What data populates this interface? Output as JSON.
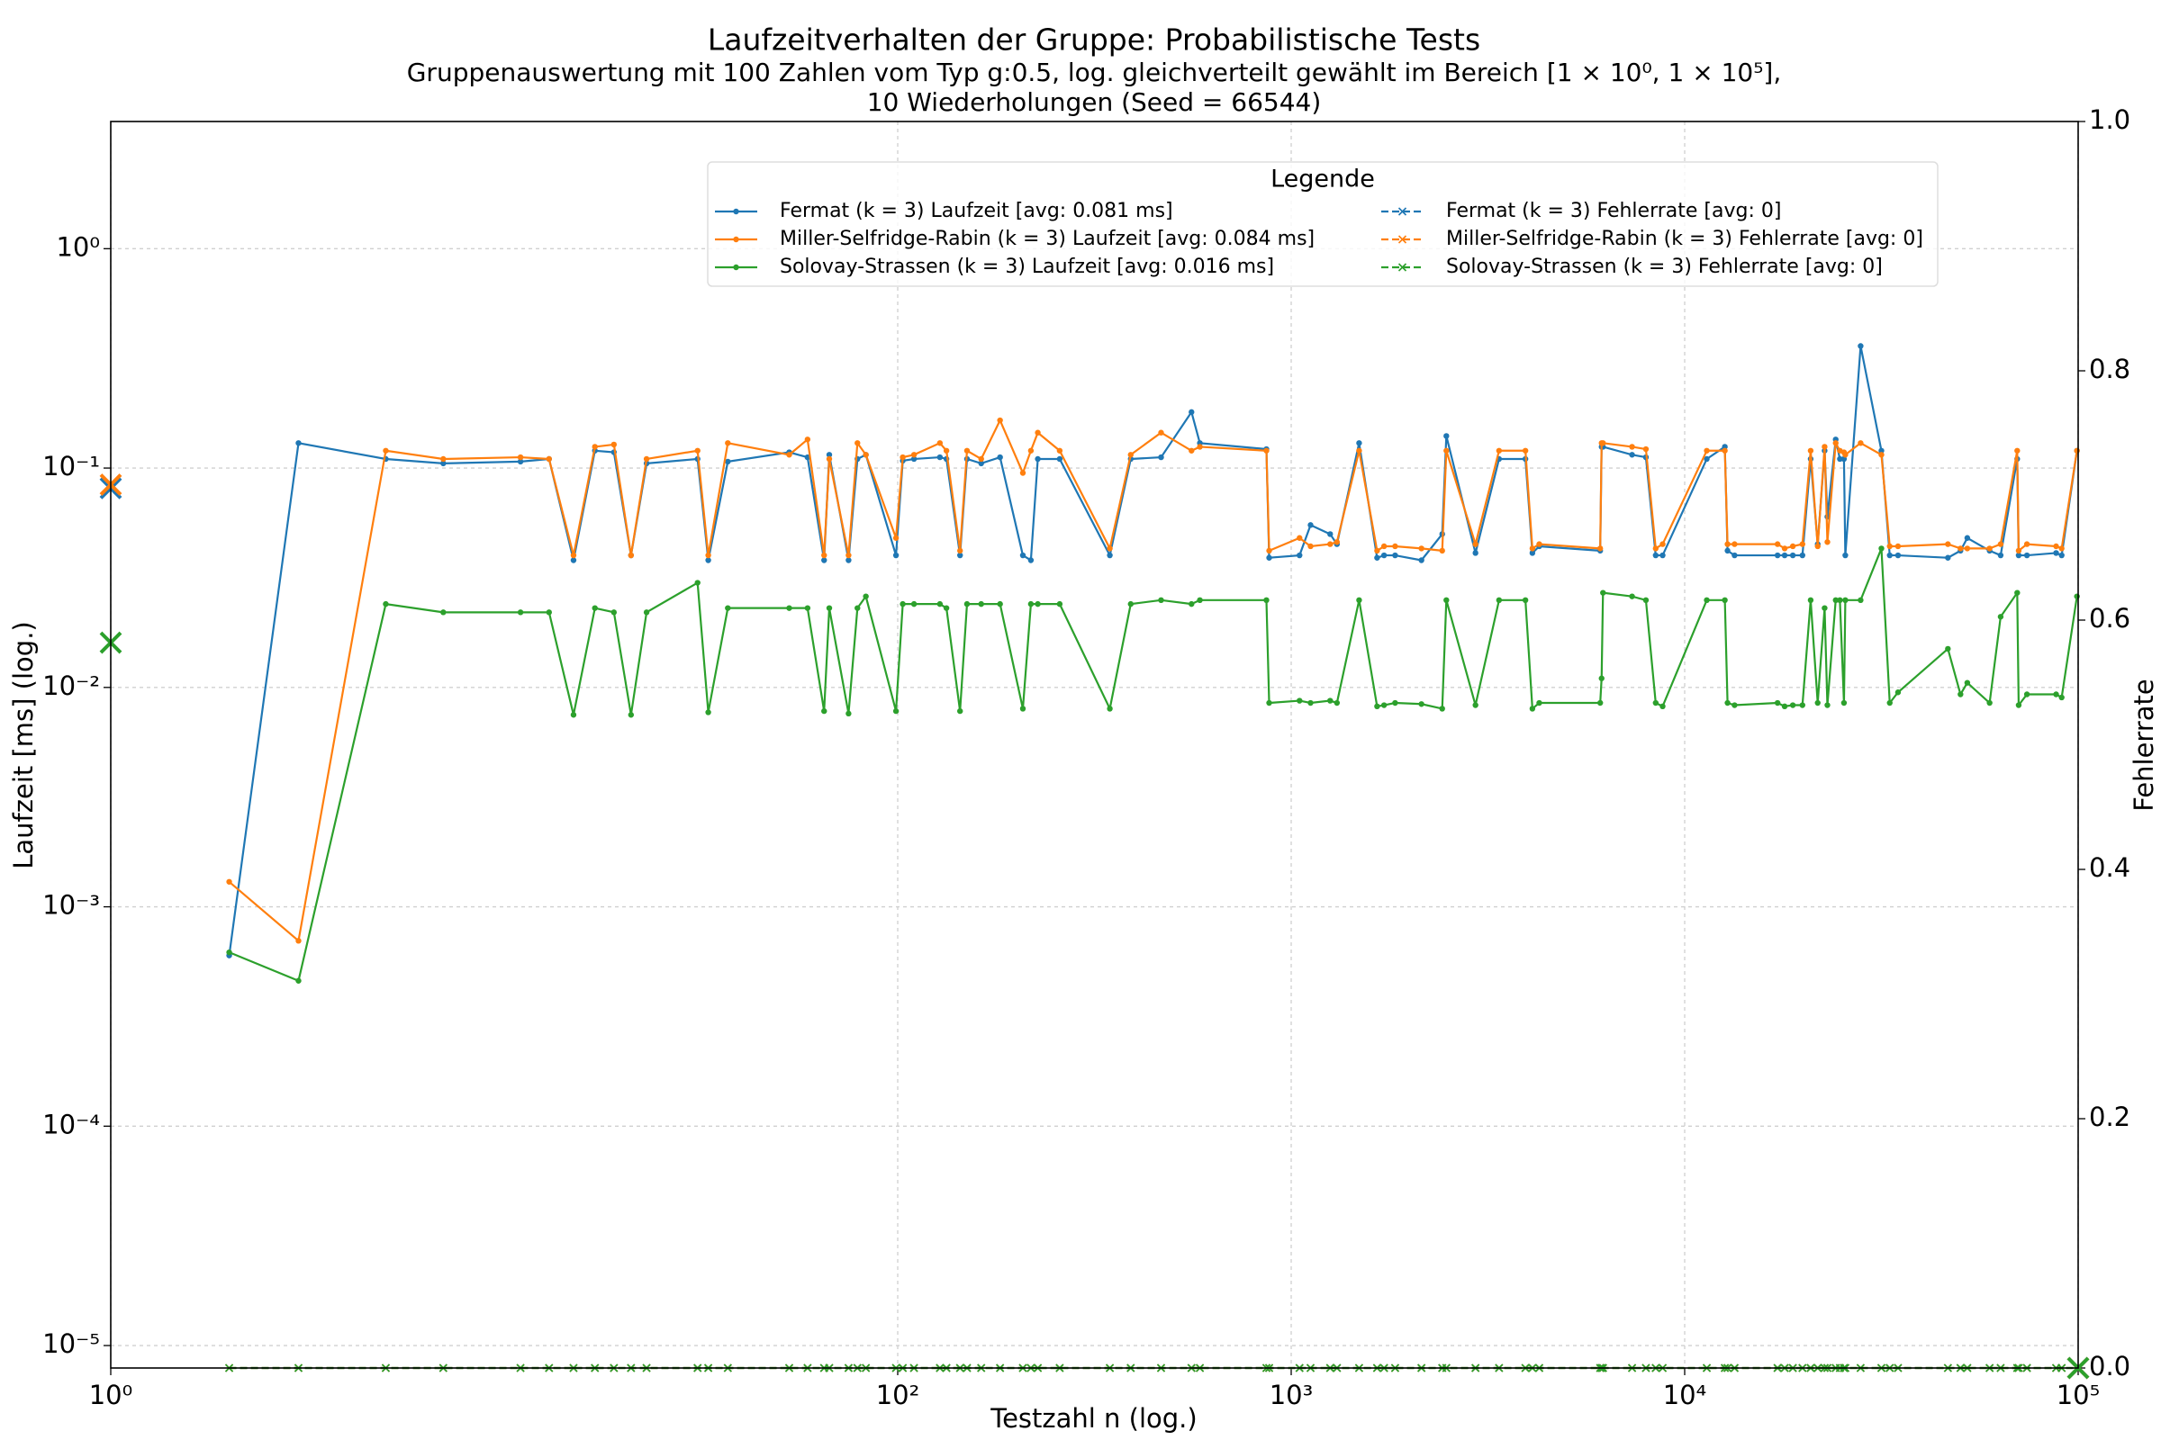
{
  "chart_data": {
    "type": "line",
    "title": "Laufzeitverhalten der Gruppe: Probabilistische Tests",
    "subtitle": [
      "Gruppenauswertung mit 100 Zahlen vom Typ g:0.5, log. gleichverteilt gewählt im Bereich [1 × 10⁰, 1 × 10⁵],",
      "10 Wiederholungen (Seed = 66544)"
    ],
    "xlabel": "Testzahl n (log.)",
    "ylabel": "Laufzeit [ms] (log.)",
    "y2label": "Fehlerrate",
    "legend_title": "Legende",
    "xscale": "log",
    "yscale": "log",
    "grid": true,
    "xlim": [
      1,
      100000
    ],
    "ylim": [
      7.9e-06,
      3.8
    ],
    "y2lim": [
      0,
      1
    ],
    "xticks": [
      {
        "value": 1,
        "label": "10⁰"
      },
      {
        "value": 100,
        "label": "10²"
      },
      {
        "value": 1000,
        "label": "10³"
      },
      {
        "value": 10000,
        "label": "10⁴"
      },
      {
        "value": 100000,
        "label": "10⁵"
      }
    ],
    "yticks": [
      {
        "value": 1e-05,
        "label": "10⁻⁵"
      },
      {
        "value": 0.0001,
        "label": "10⁻⁴"
      },
      {
        "value": 0.001,
        "label": "10⁻³"
      },
      {
        "value": 0.01,
        "label": "10⁻²"
      },
      {
        "value": 0.1,
        "label": "10⁻¹"
      },
      {
        "value": 1,
        "label": "10⁰"
      }
    ],
    "y2ticks": [
      {
        "value": 0,
        "label": "0.0"
      },
      0.2,
      0.4,
      0.6,
      0.8,
      {
        "value": 1,
        "label": "1.0"
      }
    ],
    "x": [
      2,
      3,
      5,
      7,
      11,
      13,
      15,
      17,
      19,
      21,
      23,
      31,
      33,
      37,
      53,
      59,
      65,
      67,
      75,
      79,
      83,
      99,
      103,
      110,
      128,
      133,
      144,
      150,
      163,
      182,
      208,
      218,
      227,
      258,
      346,
      391,
      467,
      558,
      586,
      865,
      879,
      1050,
      1120,
      1256,
      1307,
      1488,
      1653,
      1722,
      1837,
      2143,
      2420,
      2479,
      2940,
      3375,
      3938,
      4102,
      4270,
      6100,
      6150,
      6200,
      7350,
      7970,
      8440,
      8790,
      11380,
      12650,
      12850,
      13390,
      17220,
      17950,
      18830,
      19920,
      20900,
      21780,
      22680,
      23050,
      24200,
      24800,
      25400,
      25600,
      28000,
      31620,
      33200,
      34850,
      46660,
      50230,
      52270,
      59560,
      63530,
      70000,
      70600,
      74100,
      87900,
      90800,
      99300
    ],
    "series": [
      {
        "name": "Fermat (k = 3) Laufzeit [avg: 0.081 ms]",
        "color": "#1f77b4",
        "marker": ".",
        "avg": 0.081,
        "values": [
          0.0006,
          0.13,
          0.11,
          0.105,
          0.107,
          0.11,
          0.038,
          0.12,
          0.118,
          0.04,
          0.105,
          0.11,
          0.038,
          0.107,
          0.118,
          0.112,
          0.038,
          0.115,
          0.038,
          0.11,
          0.115,
          0.04,
          0.108,
          0.11,
          0.112,
          0.11,
          0.04,
          0.11,
          0.105,
          0.112,
          0.04,
          0.038,
          0.11,
          0.11,
          0.04,
          0.11,
          0.112,
          0.18,
          0.13,
          0.122,
          0.039,
          0.04,
          0.055,
          0.05,
          0.045,
          0.13,
          0.039,
          0.04,
          0.04,
          0.038,
          0.05,
          0.14,
          0.041,
          0.11,
          0.11,
          0.041,
          0.044,
          0.042,
          0.125,
          0.125,
          0.115,
          0.112,
          0.04,
          0.04,
          0.11,
          0.125,
          0.042,
          0.04,
          0.04,
          0.04,
          0.04,
          0.04,
          0.11,
          0.045,
          0.12,
          0.06,
          0.135,
          0.11,
          0.11,
          0.04,
          0.36,
          0.12,
          0.04,
          0.04,
          0.039,
          0.042,
          0.048,
          0.042,
          0.04,
          0.11,
          0.04,
          0.04,
          0.041,
          0.04,
          0.12
        ]
      },
      {
        "name": "Miller-Selfridge-Rabin (k = 3) Laufzeit [avg: 0.084 ms]",
        "color": "#ff7f0e",
        "marker": ".",
        "avg": 0.084,
        "values": [
          0.0013,
          0.0007,
          0.12,
          0.11,
          0.112,
          0.11,
          0.04,
          0.125,
          0.128,
          0.04,
          0.11,
          0.12,
          0.04,
          0.13,
          0.115,
          0.135,
          0.04,
          0.11,
          0.04,
          0.13,
          0.115,
          0.048,
          0.112,
          0.115,
          0.13,
          0.12,
          0.042,
          0.12,
          0.11,
          0.165,
          0.095,
          0.12,
          0.145,
          0.12,
          0.043,
          0.115,
          0.145,
          0.12,
          0.125,
          0.12,
          0.042,
          0.048,
          0.044,
          0.045,
          0.046,
          0.12,
          0.042,
          0.044,
          0.044,
          0.043,
          0.042,
          0.12,
          0.045,
          0.12,
          0.12,
          0.043,
          0.045,
          0.043,
          0.13,
          0.13,
          0.125,
          0.122,
          0.043,
          0.045,
          0.12,
          0.12,
          0.045,
          0.045,
          0.045,
          0.043,
          0.044,
          0.045,
          0.12,
          0.044,
          0.125,
          0.046,
          0.13,
          0.12,
          0.118,
          0.115,
          0.13,
          0.115,
          0.044,
          0.044,
          0.045,
          0.043,
          0.043,
          0.043,
          0.045,
          0.12,
          0.042,
          0.045,
          0.044,
          0.043,
          0.12
        ]
      },
      {
        "name": "Solovay-Strassen (k = 3) Laufzeit [avg: 0.016 ms]",
        "color": "#2ca02c",
        "marker": ".",
        "avg": 0.016,
        "values": [
          0.00062,
          0.00046,
          0.024,
          0.022,
          0.022,
          0.022,
          0.0075,
          0.023,
          0.022,
          0.0075,
          0.022,
          0.03,
          0.0077,
          0.023,
          0.023,
          0.023,
          0.0078,
          0.023,
          0.0076,
          0.023,
          0.026,
          0.0078,
          0.024,
          0.024,
          0.024,
          0.023,
          0.0078,
          0.024,
          0.024,
          0.024,
          0.008,
          0.024,
          0.024,
          0.024,
          0.008,
          0.024,
          0.025,
          0.024,
          0.025,
          0.025,
          0.0085,
          0.0087,
          0.0085,
          0.0087,
          0.0085,
          0.025,
          0.0082,
          0.0083,
          0.0085,
          0.0084,
          0.008,
          0.025,
          0.0083,
          0.025,
          0.025,
          0.008,
          0.0085,
          0.0085,
          0.011,
          0.027,
          0.026,
          0.025,
          0.0085,
          0.0082,
          0.025,
          0.025,
          0.0085,
          0.0083,
          0.0085,
          0.0082,
          0.0083,
          0.0083,
          0.025,
          0.0085,
          0.023,
          0.0083,
          0.025,
          0.025,
          0.0085,
          0.025,
          0.025,
          0.043,
          0.0085,
          0.0095,
          0.015,
          0.0093,
          0.0105,
          0.0085,
          0.021,
          0.027,
          0.0083,
          0.0093,
          0.0093,
          0.009,
          0.026
        ]
      },
      {
        "name": "Fermat (k = 3) Fehlerrate [avg: 0]",
        "color": "#1f77b4",
        "marker": "x",
        "linestyle": "--",
        "axis": "y2",
        "avg": 0,
        "values": [
          0,
          0,
          0,
          0,
          0,
          0,
          0,
          0,
          0,
          0,
          0,
          0,
          0,
          0,
          0,
          0,
          0,
          0,
          0,
          0,
          0,
          0,
          0,
          0,
          0,
          0,
          0,
          0,
          0,
          0,
          0,
          0,
          0,
          0,
          0,
          0,
          0,
          0,
          0,
          0,
          0,
          0,
          0,
          0,
          0,
          0,
          0,
          0,
          0,
          0,
          0,
          0,
          0,
          0,
          0,
          0,
          0,
          0,
          0,
          0,
          0,
          0,
          0,
          0,
          0,
          0,
          0,
          0,
          0,
          0,
          0,
          0,
          0,
          0,
          0,
          0,
          0,
          0,
          0,
          0,
          0,
          0,
          0,
          0,
          0,
          0,
          0,
          0,
          0,
          0,
          0,
          0,
          0,
          0,
          0
        ]
      },
      {
        "name": "Miller-Selfridge-Rabin (k = 3) Fehlerrate [avg: 0]",
        "color": "#ff7f0e",
        "marker": "x",
        "linestyle": "--",
        "axis": "y2",
        "avg": 0,
        "values": [
          0,
          0,
          0,
          0,
          0,
          0,
          0,
          0,
          0,
          0,
          0,
          0,
          0,
          0,
          0,
          0,
          0,
          0,
          0,
          0,
          0,
          0,
          0,
          0,
          0,
          0,
          0,
          0,
          0,
          0,
          0,
          0,
          0,
          0,
          0,
          0,
          0,
          0,
          0,
          0,
          0,
          0,
          0,
          0,
          0,
          0,
          0,
          0,
          0,
          0,
          0,
          0,
          0,
          0,
          0,
          0,
          0,
          0,
          0,
          0,
          0,
          0,
          0,
          0,
          0,
          0,
          0,
          0,
          0,
          0,
          0,
          0,
          0,
          0,
          0,
          0,
          0,
          0,
          0,
          0,
          0,
          0,
          0,
          0,
          0,
          0,
          0,
          0,
          0,
          0,
          0,
          0,
          0,
          0,
          0
        ]
      },
      {
        "name": "Solovay-Strassen (k = 3) Fehlerrate [avg: 0]",
        "color": "#2ca02c",
        "marker": "x",
        "linestyle": "--",
        "axis": "y2",
        "avg": 0,
        "values": [
          0,
          0,
          0,
          0,
          0,
          0,
          0,
          0,
          0,
          0,
          0,
          0,
          0,
          0,
          0,
          0,
          0,
          0,
          0,
          0,
          0,
          0,
          0,
          0,
          0,
          0,
          0,
          0,
          0,
          0,
          0,
          0,
          0,
          0,
          0,
          0,
          0,
          0,
          0,
          0,
          0,
          0,
          0,
          0,
          0,
          0,
          0,
          0,
          0,
          0,
          0,
          0,
          0,
          0,
          0,
          0,
          0,
          0,
          0,
          0,
          0,
          0,
          0,
          0,
          0,
          0,
          0,
          0,
          0,
          0,
          0,
          0,
          0,
          0,
          0,
          0,
          0,
          0,
          0,
          0,
          0,
          0,
          0,
          0,
          0,
          0,
          0,
          0,
          0,
          0,
          0,
          0,
          0,
          0,
          0
        ]
      }
    ]
  }
}
